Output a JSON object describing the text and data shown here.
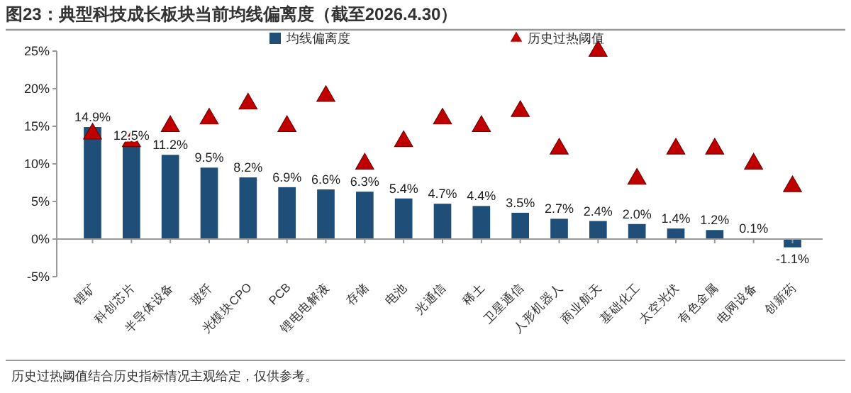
{
  "chart_data": {
    "type": "bar",
    "title": "图23：典型科技成长板块当前均线偏离度（截至2026.4.30）",
    "categories": [
      "锂矿",
      "科创芯片",
      "半导体设备",
      "玻纤",
      "光模块CPO",
      "PCB",
      "锂电电解液",
      "存储",
      "电池",
      "光通信",
      "稀土",
      "卫星通信",
      "人形机器人",
      "商业航天",
      "基础化工",
      "太空光伏",
      "有色金属",
      "电网设备",
      "创新药"
    ],
    "series": [
      {
        "name": "均线偏离度",
        "color": "#1f4e79",
        "values": [
          14.9,
          12.5,
          11.2,
          9.5,
          8.2,
          6.9,
          6.6,
          6.3,
          5.4,
          4.7,
          4.4,
          3.5,
          2.7,
          2.4,
          2.0,
          1.4,
          1.2,
          0.1,
          -1.1
        ],
        "value_labels": [
          "14.9%",
          "12.5%",
          "11.2%",
          "9.5%",
          "8.2%",
          "6.9%",
          "6.6%",
          "6.3%",
          "5.4%",
          "4.7%",
          "4.4%",
          "3.5%",
          "2.7%",
          "2.4%",
          "2.0%",
          "1.4%",
          "1.2%",
          "0.1%",
          "-1.1%"
        ]
      },
      {
        "name": "历史过热阈值",
        "type": "scatter",
        "marker": "triangle",
        "color": "#c00000",
        "values": [
          14,
          13,
          15,
          16,
          18,
          15,
          19,
          10,
          13,
          16,
          15,
          17,
          12,
          25,
          8,
          12,
          12,
          10,
          7
        ]
      }
    ],
    "ylim": [
      -5,
      25
    ],
    "yticks": [
      {
        "value": -5,
        "label": "-5%"
      },
      {
        "value": 0,
        "label": "0%"
      },
      {
        "value": 5,
        "label": "5%"
      },
      {
        "value": 10,
        "label": "10%"
      },
      {
        "value": 15,
        "label": "15%"
      },
      {
        "value": 20,
        "label": "20%"
      },
      {
        "value": 25,
        "label": "25%"
      }
    ],
    "legend": "top",
    "annotations": [
      "历史过热阈值结合历史指标情况主观给定，仅供参考。"
    ]
  }
}
